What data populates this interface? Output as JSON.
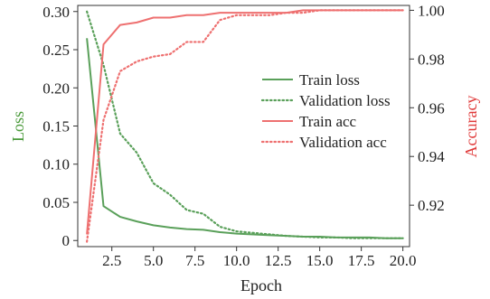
{
  "chart_data": {
    "type": "line",
    "title": "",
    "xlabel": "Epoch",
    "ylabel_left": "Loss",
    "ylabel_right": "Accuracy",
    "xlim": [
      0.45,
      20.4
    ],
    "ylim_left": [
      -0.008,
      0.308
    ],
    "ylim_right": [
      0.903,
      1.002
    ],
    "x_ticks": [
      2.5,
      5.0,
      7.5,
      10.0,
      12.5,
      15.0,
      17.5,
      20.0
    ],
    "x_tick_labels": [
      "2.5",
      "5.0",
      "7.5",
      "10.0",
      "12.5",
      "15.0",
      "17.5",
      "20.0"
    ],
    "left_ticks": [
      0,
      0.05,
      0.1,
      0.15,
      0.2,
      0.25,
      0.3
    ],
    "left_tick_labels": [
      "0",
      "0.05",
      "0.10",
      "0.15",
      "0.20",
      "0.25",
      "0.30"
    ],
    "right_ticks": [
      0.92,
      0.94,
      0.96,
      0.98,
      1.0
    ],
    "right_tick_labels": [
      "0.92",
      "0.94",
      "0.96",
      "0.98",
      "1.00"
    ],
    "grid": false,
    "legend_position": "center-right",
    "colors": {
      "loss_axis": "#4a9a3a",
      "acc_axis": "#e03a3a"
    },
    "x": [
      1,
      2,
      3,
      4,
      5,
      6,
      7,
      8,
      9,
      10,
      11,
      12,
      13,
      14,
      15,
      16,
      17,
      18,
      19,
      20
    ],
    "series": [
      {
        "name": "Train loss",
        "axis": "left",
        "color": "#5aa05a",
        "style": "solid",
        "values": [
          0.265,
          0.045,
          0.031,
          0.025,
          0.02,
          0.017,
          0.015,
          0.014,
          0.011,
          0.009,
          0.008,
          0.007,
          0.006,
          0.005,
          0.005,
          0.004,
          0.004,
          0.004,
          0.003,
          0.003
        ]
      },
      {
        "name": "Validation loss",
        "axis": "left",
        "color": "#5aa05a",
        "style": "dotted",
        "values": [
          0.3,
          0.23,
          0.14,
          0.115,
          0.075,
          0.06,
          0.04,
          0.035,
          0.018,
          0.012,
          0.01,
          0.008,
          0.006,
          0.005,
          0.004,
          0.004,
          0.003,
          0.003,
          0.003,
          0.003
        ]
      },
      {
        "name": "Train acc",
        "axis": "right",
        "color": "#ee7070",
        "style": "solid",
        "values": [
          0.908,
          0.986,
          0.994,
          0.995,
          0.997,
          0.997,
          0.998,
          0.998,
          0.999,
          0.999,
          0.999,
          0.999,
          0.999,
          1.0,
          1.0,
          1.0,
          1.0,
          1.0,
          1.0,
          1.0
        ]
      },
      {
        "name": "Validation acc",
        "axis": "right",
        "color": "#ee7070",
        "style": "dotted",
        "values": [
          0.905,
          0.955,
          0.975,
          0.979,
          0.981,
          0.982,
          0.987,
          0.987,
          0.996,
          0.998,
          0.998,
          0.998,
          0.999,
          0.999,
          1.0,
          1.0,
          1.0,
          1.0,
          1.0,
          1.0
        ]
      }
    ]
  }
}
